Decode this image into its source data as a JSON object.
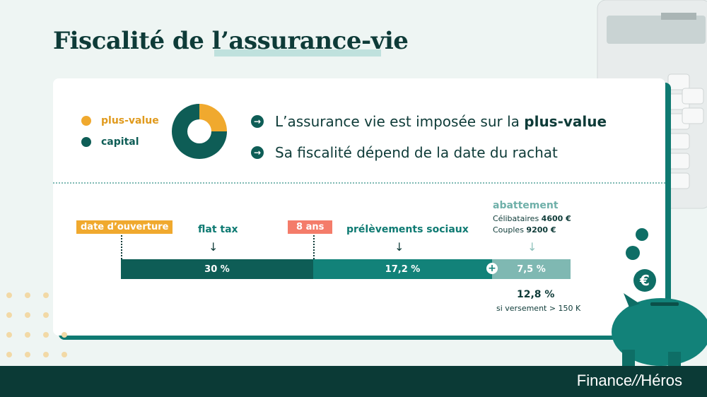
{
  "title": "Fiscalité de l’assurance-vie",
  "legend": {
    "items": [
      {
        "label": "plus-value",
        "color": "#f0a92e"
      },
      {
        "label": "capital",
        "color": "#0e5d56"
      }
    ]
  },
  "donut": {
    "plus_value_fraction": 0.25,
    "colors": {
      "plus_value": "#f0a92e",
      "capital": "#0e5d56"
    }
  },
  "bullets": {
    "b1_text": "L’assurance vie est imposée sur la ",
    "b1_bold": "plus-value",
    "b2_text": "Sa fiscalité dépend de la date du rachat"
  },
  "timeline": {
    "date_ouverture": "date d’ouverture",
    "huit_ans": "8 ans",
    "flat_tax": "flat tax",
    "prelevements": "prélèvements sociaux",
    "abattement": "abattement",
    "celib_label": "Célibataires ",
    "celib_value": "4600 €",
    "couples_label": "Couples ",
    "couples_value": "9200 €",
    "seg1": "30 %",
    "seg2": "17,2 %",
    "seg3": "7,5 %",
    "rate": "12,8 %",
    "condition": "si versement > 150 K"
  },
  "brand": {
    "left": "Finance",
    "right": "Héros"
  }
}
